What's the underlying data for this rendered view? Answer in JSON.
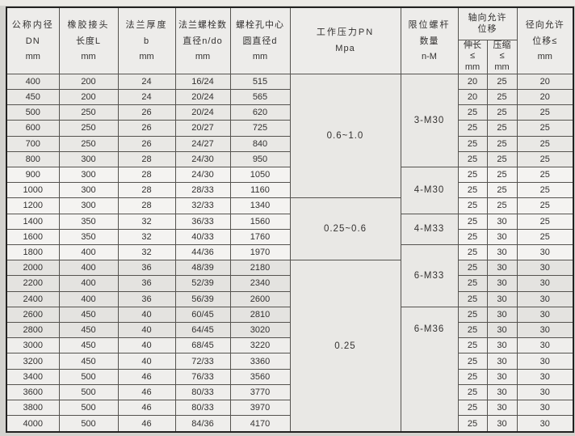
{
  "table": {
    "columns": {
      "dn": {
        "title": "公称内径",
        "sub": "DN",
        "unit": "mm"
      },
      "length": {
        "title": "橡胶接头",
        "sub": "长度L",
        "unit": "mm"
      },
      "thickness": {
        "title": "法兰厚度",
        "sub": "b",
        "unit": "mm"
      },
      "bolts": {
        "title": "法兰螺栓数",
        "sub": "直径n/do",
        "unit": "mm"
      },
      "circle": {
        "title": "螺栓孔中心",
        "sub": "圆直径d",
        "unit": "mm"
      },
      "pressure": {
        "title": "工作压力PN",
        "sub": "Mpa"
      },
      "screw": {
        "title": "限位螺杆",
        "sub": "数量",
        "unit": "n-M"
      },
      "axial": {
        "title": "轴向允许",
        "sub": "位移"
      },
      "elongation": {
        "title": "伸长",
        "sub": "≤",
        "unit": "mm"
      },
      "compression": {
        "title": "压缩",
        "sub": "≤",
        "unit": "mm"
      },
      "radial": {
        "title": "径向允许",
        "sub": "位移≤",
        "unit": "mm"
      }
    },
    "pn_groups": [
      {
        "label": "0.6~1.0",
        "start": 0,
        "span": 8
      },
      {
        "label": "0.25~0.6",
        "start": 8,
        "span": 4
      },
      {
        "label": "0.25",
        "start": 12,
        "span": 11
      }
    ],
    "screw_groups": [
      {
        "label": "3-M30",
        "start": 0,
        "span": 6
      },
      {
        "label": "4-M30",
        "start": 6,
        "span": 3
      },
      {
        "label": "4-M33",
        "start": 9,
        "span": 2
      },
      {
        "label": "6-M33",
        "start": 11,
        "span": 4
      },
      {
        "label": "6-M36",
        "start": 15,
        "span": 8
      }
    ],
    "rows": [
      {
        "dn": "400",
        "l": "200",
        "b": "24",
        "n_do": "16/24",
        "d": "515",
        "elong": "20",
        "comp": "25",
        "radial": "20"
      },
      {
        "dn": "450",
        "l": "200",
        "b": "24",
        "n_do": "20/24",
        "d": "565",
        "elong": "20",
        "comp": "25",
        "radial": "20"
      },
      {
        "dn": "500",
        "l": "250",
        "b": "26",
        "n_do": "20/24",
        "d": "620",
        "elong": "25",
        "comp": "25",
        "radial": "25"
      },
      {
        "dn": "600",
        "l": "250",
        "b": "26",
        "n_do": "20/27",
        "d": "725",
        "elong": "25",
        "comp": "25",
        "radial": "25"
      },
      {
        "dn": "700",
        "l": "250",
        "b": "26",
        "n_do": "24/27",
        "d": "840",
        "elong": "25",
        "comp": "25",
        "radial": "25"
      },
      {
        "dn": "800",
        "l": "300",
        "b": "28",
        "n_do": "24/30",
        "d": "950",
        "elong": "25",
        "comp": "25",
        "radial": "25"
      },
      {
        "dn": "900",
        "l": "300",
        "b": "28",
        "n_do": "24/30",
        "d": "1050",
        "elong": "25",
        "comp": "25",
        "radial": "25"
      },
      {
        "dn": "1000",
        "l": "300",
        "b": "28",
        "n_do": "28/33",
        "d": "1160",
        "elong": "25",
        "comp": "25",
        "radial": "25"
      },
      {
        "dn": "1200",
        "l": "300",
        "b": "28",
        "n_do": "32/33",
        "d": "1340",
        "elong": "25",
        "comp": "25",
        "radial": "25"
      },
      {
        "dn": "1400",
        "l": "350",
        "b": "32",
        "n_do": "36/33",
        "d": "1560",
        "elong": "25",
        "comp": "30",
        "radial": "25"
      },
      {
        "dn": "1600",
        "l": "350",
        "b": "32",
        "n_do": "40/33",
        "d": "1760",
        "elong": "25",
        "comp": "30",
        "radial": "25"
      },
      {
        "dn": "1800",
        "l": "400",
        "b": "32",
        "n_do": "44/36",
        "d": "1970",
        "elong": "25",
        "comp": "30",
        "radial": "30"
      },
      {
        "dn": "2000",
        "l": "400",
        "b": "36",
        "n_do": "48/39",
        "d": "2180",
        "elong": "25",
        "comp": "30",
        "radial": "30"
      },
      {
        "dn": "2200",
        "l": "400",
        "b": "36",
        "n_do": "52/39",
        "d": "2340",
        "elong": "25",
        "comp": "30",
        "radial": "30"
      },
      {
        "dn": "2400",
        "l": "400",
        "b": "36",
        "n_do": "56/39",
        "d": "2600",
        "elong": "25",
        "comp": "30",
        "radial": "30"
      },
      {
        "dn": "2600",
        "l": "450",
        "b": "40",
        "n_do": "60/45",
        "d": "2810",
        "elong": "25",
        "comp": "30",
        "radial": "30"
      },
      {
        "dn": "2800",
        "l": "450",
        "b": "40",
        "n_do": "64/45",
        "d": "3020",
        "elong": "25",
        "comp": "30",
        "radial": "30"
      },
      {
        "dn": "3000",
        "l": "450",
        "b": "40",
        "n_do": "68/45",
        "d": "3220",
        "elong": "25",
        "comp": "30",
        "radial": "30"
      },
      {
        "dn": "3200",
        "l": "450",
        "b": "40",
        "n_do": "72/33",
        "d": "3360",
        "elong": "25",
        "comp": "30",
        "radial": "30"
      },
      {
        "dn": "3400",
        "l": "500",
        "b": "46",
        "n_do": "76/33",
        "d": "3560",
        "elong": "25",
        "comp": "30",
        "radial": "30"
      },
      {
        "dn": "3600",
        "l": "500",
        "b": "46",
        "n_do": "80/33",
        "d": "3770",
        "elong": "25",
        "comp": "30",
        "radial": "30"
      },
      {
        "dn": "3800",
        "l": "500",
        "b": "46",
        "n_do": "80/33",
        "d": "3970",
        "elong": "25",
        "comp": "30",
        "radial": "30"
      },
      {
        "dn": "4000",
        "l": "500",
        "b": "46",
        "n_do": "84/36",
        "d": "4170",
        "elong": "25",
        "comp": "30",
        "radial": "30"
      }
    ]
  }
}
